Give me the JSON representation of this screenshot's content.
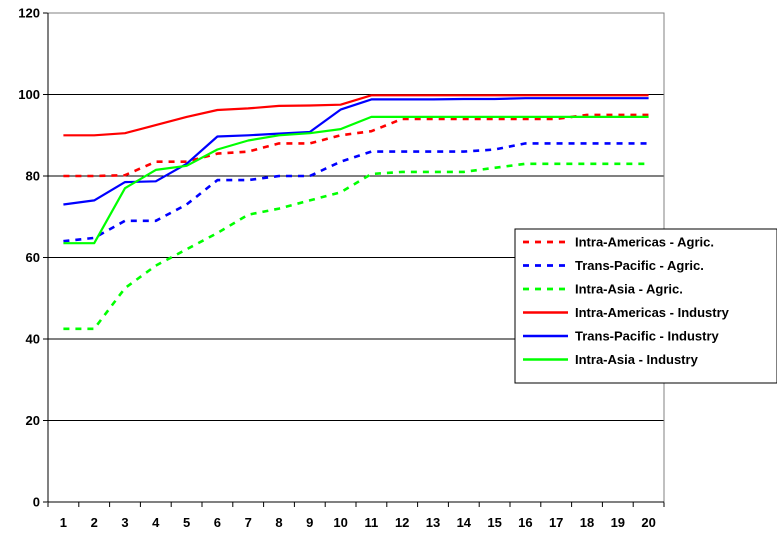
{
  "chart_data": {
    "type": "line",
    "title": "",
    "xlabel": "",
    "ylabel": "",
    "x": [
      1,
      2,
      3,
      4,
      5,
      6,
      7,
      8,
      9,
      10,
      11,
      12,
      13,
      14,
      15,
      16,
      17,
      18,
      19,
      20
    ],
    "ylim": [
      0,
      120
    ],
    "yticks": [
      0,
      20,
      40,
      60,
      80,
      100,
      120
    ],
    "grid": "horizontal major gridlines",
    "legend_position": "right",
    "series": [
      {
        "name": "Intra-Americas - Agric.",
        "color": "#ff0000",
        "style": "dashed",
        "values": [
          80,
          80,
          80.2,
          83.5,
          83.5,
          85.5,
          86,
          88,
          88,
          90,
          91,
          94,
          94,
          94,
          94,
          94,
          94,
          95,
          95,
          95
        ]
      },
      {
        "name": "Trans-Pacific - Agric.",
        "color": "#0000ff",
        "style": "dashed",
        "values": [
          64,
          64.8,
          69,
          69,
          73,
          79,
          79,
          80,
          80,
          83.5,
          86,
          86,
          86,
          86,
          86.5,
          88,
          88,
          88,
          88,
          88
        ]
      },
      {
        "name": "Intra-Asia - Agric.",
        "color": "#00ff00",
        "style": "dashed",
        "values": [
          42.5,
          42.5,
          52.5,
          58,
          62,
          66,
          70.5,
          72,
          74,
          76,
          80.5,
          81,
          81,
          81,
          82,
          83,
          83,
          83,
          83,
          83
        ]
      },
      {
        "name": "Intra-Americas - Industry",
        "color": "#ff0000",
        "style": "solid",
        "values": [
          90,
          90,
          90.5,
          92.5,
          94.5,
          96.2,
          96.6,
          97.2,
          97.3,
          97.5,
          99.8,
          99.8,
          99.8,
          99.8,
          99.8,
          99.8,
          99.8,
          99.8,
          99.8,
          99.8
        ]
      },
      {
        "name": "Trans-Pacific - Industry",
        "color": "#0000ff",
        "style": "solid",
        "values": [
          73,
          74,
          78.5,
          78.7,
          83,
          89.7,
          90,
          90.4,
          90.8,
          96.3,
          98.8,
          98.8,
          98.8,
          98.9,
          98.9,
          99.1,
          99.1,
          99.1,
          99.1,
          99.1
        ]
      },
      {
        "name": "Intra-Asia - Industry",
        "color": "#00ff00",
        "style": "solid",
        "values": [
          63.5,
          63.5,
          77,
          81.5,
          82.5,
          86.5,
          88.7,
          90,
          90.5,
          91.5,
          94.5,
          94.5,
          94.5,
          94.5,
          94.5,
          94.5,
          94.5,
          94.5,
          94.5,
          94.5
        ]
      }
    ]
  }
}
